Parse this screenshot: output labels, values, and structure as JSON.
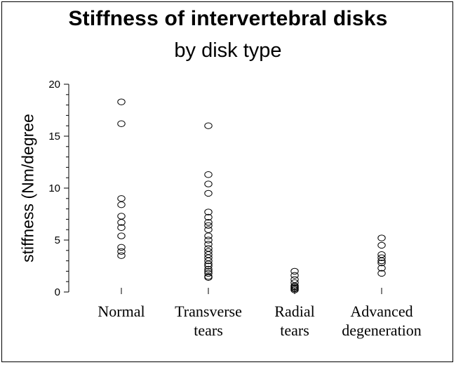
{
  "chart_data": {
    "type": "scatter",
    "title": "Stiffness of intervertebral disks",
    "subtitle": "by disk type",
    "ylabel": "stiffness (Nm/degree",
    "xlabel": "",
    "ylim": [
      0,
      20
    ],
    "yticks": [
      0,
      5,
      10,
      15,
      20
    ],
    "grid": false,
    "categories": [
      {
        "label_lines": [
          "Normal"
        ]
      },
      {
        "label_lines": [
          "Transverse",
          "tears"
        ]
      },
      {
        "label_lines": [
          "Radial",
          "tears"
        ]
      },
      {
        "label_lines": [
          "Advanced",
          "degeneration"
        ]
      }
    ],
    "series": [
      {
        "category": 0,
        "values": [
          18.3,
          16.2,
          9.0,
          8.4,
          7.3,
          6.7,
          6.2,
          5.4,
          4.3,
          3.9,
          3.5
        ]
      },
      {
        "category": 1,
        "values": [
          16.0,
          11.3,
          10.4,
          9.5,
          7.7,
          7.2,
          6.7,
          6.4,
          6.0,
          5.4,
          5.0,
          4.6,
          4.2,
          3.9,
          3.6,
          3.3,
          3.0,
          2.7,
          2.5,
          2.2,
          2.0,
          1.8,
          1.5,
          1.4
        ]
      },
      {
        "category": 2,
        "values": [
          2.0,
          1.6,
          1.2,
          0.9,
          0.6,
          0.5,
          0.4,
          0.3,
          0.2
        ]
      },
      {
        "category": 3,
        "values": [
          5.2,
          4.5,
          3.6,
          3.3,
          3.0,
          2.8,
          2.3,
          1.8
        ]
      }
    ]
  }
}
